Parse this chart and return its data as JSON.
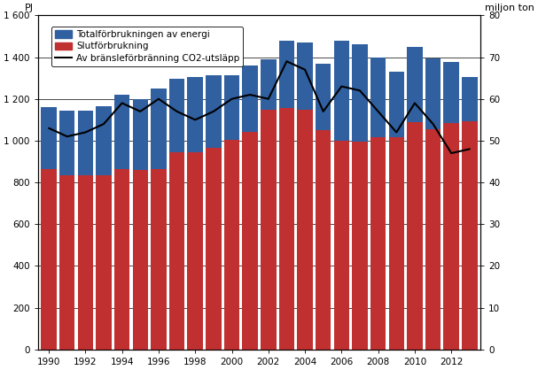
{
  "years": [
    1990,
    1991,
    1992,
    1993,
    1994,
    1995,
    1996,
    1997,
    1998,
    1999,
    2000,
    2001,
    2002,
    2003,
    2004,
    2005,
    2006,
    2007,
    2008,
    2009,
    2010,
    2011,
    2012,
    2013
  ],
  "total_energy": [
    1160,
    1145,
    1145,
    1165,
    1220,
    1200,
    1250,
    1295,
    1305,
    1315,
    1315,
    1360,
    1390,
    1480,
    1470,
    1370,
    1480,
    1460,
    1400,
    1330,
    1450,
    1395,
    1375,
    1305
  ],
  "slutforbrukning": [
    865,
    835,
    835,
    835,
    865,
    860,
    865,
    945,
    945,
    965,
    1005,
    1040,
    1150,
    1155,
    1150,
    1050,
    1000,
    995,
    1015,
    1015,
    1090,
    1055,
    1085,
    1095
  ],
  "co2": [
    53,
    51,
    52,
    54,
    59,
    57,
    60,
    57,
    55,
    57,
    60,
    61,
    60,
    69,
    67,
    57,
    63,
    62,
    57,
    52,
    59,
    54,
    47,
    48
  ],
  "bar_color_blue": "#3060A0",
  "bar_color_red": "#C03030",
  "line_color": "#000000",
  "ylabel_left": "PJ",
  "ylabel_right": "miljon ton",
  "ylim_left": [
    0,
    1600
  ],
  "ylim_right": [
    0,
    80
  ],
  "yticks_left": [
    0,
    200,
    400,
    600,
    800,
    1000,
    1200,
    1400,
    1600
  ],
  "ytick_labels_left": [
    "0",
    "200",
    "400",
    "600",
    "800",
    "1 000",
    "1 200",
    "1 400",
    "1 600"
  ],
  "yticks_right": [
    0,
    10,
    20,
    30,
    40,
    50,
    60,
    70,
    80
  ],
  "ytick_labels_right": [
    "0",
    "10",
    "20",
    "30",
    "40",
    "50",
    "60",
    "70",
    "80"
  ],
  "legend_total": "Totalförbrukningen av energi",
  "legend_slut": "Slutförbrukning",
  "legend_co2": "Av bränsleförbränning CO2-utsläpp",
  "background_color": "#ffffff",
  "grid_color": "#000000",
  "x_tick_years": [
    1990,
    1992,
    1994,
    1996,
    1998,
    2000,
    2002,
    2004,
    2006,
    2008,
    2010,
    2012
  ]
}
